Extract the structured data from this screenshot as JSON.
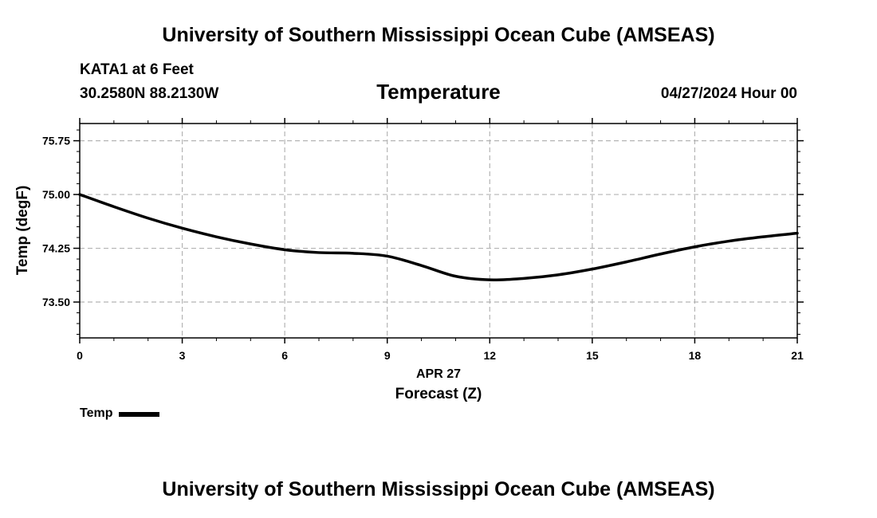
{
  "header": {
    "title": "University of Southern Mississippi Ocean Cube (AMSEAS)",
    "station": "KATA1 at 6 Feet",
    "coords": "30.2580N  88.2130W",
    "variable": "Temperature",
    "datetime": "04/27/2024 Hour 00"
  },
  "footer": {
    "title": "University of Southern Mississippi Ocean Cube (AMSEAS)"
  },
  "chart_data": {
    "type": "line",
    "title": "Temperature",
    "xlabel": "Forecast (Z)",
    "xlabel_date": "APR 27",
    "ylabel": "Temp (degF)",
    "xlim": [
      0,
      21
    ],
    "ylim": [
      73.0,
      75.99
    ],
    "xticks": [
      0,
      3,
      6,
      9,
      12,
      15,
      18,
      21
    ],
    "xtick_labels": [
      "0",
      "3",
      "6",
      "9",
      "12",
      "15",
      "18",
      "21"
    ],
    "yticks": [
      73.5,
      74.25,
      75.0,
      75.75
    ],
    "ytick_labels": [
      "73.50",
      "74.25",
      "75.00",
      "75.75"
    ],
    "grid": true,
    "legend_position": "bottom-left",
    "series": [
      {
        "name": "Temp",
        "color": "#000000",
        "x": [
          0,
          1,
          2,
          3,
          4,
          5,
          6,
          7,
          8,
          9,
          10,
          11,
          12,
          13,
          14,
          15,
          16,
          17,
          18,
          19,
          20,
          21
        ],
        "values": [
          75.0,
          74.83,
          74.67,
          74.53,
          74.41,
          74.31,
          74.23,
          74.19,
          74.18,
          74.14,
          74.01,
          73.86,
          73.81,
          73.83,
          73.88,
          73.96,
          74.06,
          74.17,
          74.27,
          74.35,
          74.41,
          74.46
        ]
      }
    ]
  }
}
